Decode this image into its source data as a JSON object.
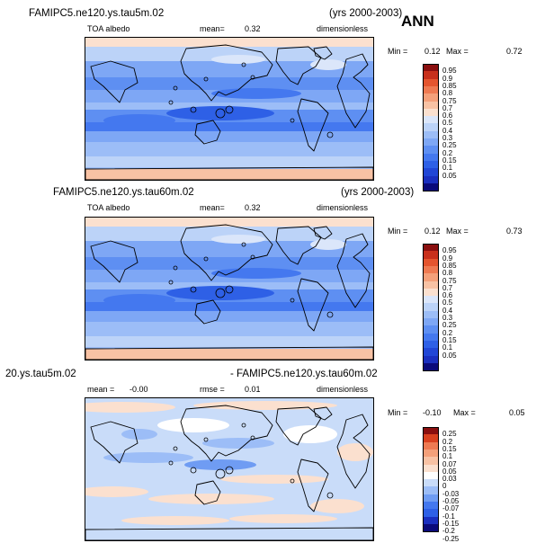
{
  "annual_label": "ANN",
  "colors": {
    "abs_scale": [
      "#0a0a7a",
      "#1a2fbf",
      "#2146d6",
      "#2e60e6",
      "#4478ef",
      "#5e8ff2",
      "#7ea7f5",
      "#9cbdf7",
      "#bcd3f8",
      "#dbe6fa",
      "#fbe0cf",
      "#f8c2a4",
      "#f4a07a",
      "#ee7a52",
      "#e4552f",
      "#c8301c",
      "#8a0f0f"
    ],
    "diff_scale": [
      "#0a0a7a",
      "#1a2fbf",
      "#2e60e6",
      "#4478ef",
      "#6f9cf3",
      "#9cbdf7",
      "#c9dcf9",
      "#ffffff",
      "#fbe0cf",
      "#f8c2a4",
      "#f4a07a",
      "#ee7a52",
      "#d9411f",
      "#8a0f0f"
    ],
    "land_outline": "#000000"
  },
  "panels": [
    {
      "title": "FAMIPC5.ne120.ys.tau5m.02",
      "years": "(yrs 2000-2003)",
      "variable": "TOA albedo",
      "mean_label": "mean=",
      "mean_value": "0.32",
      "units": "dimensionless",
      "min_label": "Min =",
      "min_value": "0.12",
      "max_label": "Max =",
      "max_value": "0.72"
    },
    {
      "title": "FAMIPC5.ne120.ys.tau60m.02",
      "years": "(yrs 2000-2003)",
      "variable": "TOA albedo",
      "mean_label": "mean=",
      "mean_value": "0.32",
      "units": "dimensionless",
      "min_label": "Min =",
      "min_value": "0.12",
      "max_label": "Max =",
      "max_value": "0.73"
    },
    {
      "title_left": "20.ys.tau5m.02",
      "title_right": "- FAMIPC5.ne120.ys.tau60m.02",
      "mean_label": "mean =",
      "mean_value": "-0.00",
      "rmse_label": "rmse =",
      "rmse_value": "0.01",
      "units": "dimensionless",
      "min_label": "Min =",
      "min_value": "-0.10",
      "max_label": "Max =",
      "max_value": "0.05"
    }
  ],
  "chart_data": [
    {
      "type": "heatmap",
      "title": "FAMIPC5.ne120.ys.tau5m.02",
      "variable": "TOA albedo",
      "units": "dimensionless",
      "period": "(yrs 2000-2003)",
      "mean": 0.32,
      "min": 0.12,
      "max": 0.72,
      "colorbar_levels": [
        "0.95",
        "0.9",
        "0.85",
        "0.8",
        "0.75",
        "0.7",
        "0.6",
        "0.5",
        "0.4",
        "0.3",
        "0.25",
        "0.2",
        "0.15",
        "0.1",
        "0.05"
      ],
      "projection": "cylindrical equidistant, Pacific-centered"
    },
    {
      "type": "heatmap",
      "title": "FAMIPC5.ne120.ys.tau60m.02",
      "variable": "TOA albedo",
      "units": "dimensionless",
      "period": "(yrs 2000-2003)",
      "mean": 0.32,
      "min": 0.12,
      "max": 0.73,
      "colorbar_levels": [
        "0.95",
        "0.9",
        "0.85",
        "0.8",
        "0.75",
        "0.7",
        "0.6",
        "0.5",
        "0.4",
        "0.3",
        "0.25",
        "0.2",
        "0.15",
        "0.1",
        "0.05"
      ],
      "projection": "cylindrical equidistant, Pacific-centered"
    },
    {
      "type": "heatmap",
      "title": "20.ys.tau5m.02 - FAMIPC5.ne120.ys.tau60m.02",
      "units": "dimensionless",
      "mean": -0.0,
      "rmse": 0.01,
      "min": -0.1,
      "max": 0.05,
      "colorbar_levels": [
        "0.25",
        "0.2",
        "0.15",
        "0.1",
        "0.07",
        "0.05",
        "0.03",
        "0",
        "-0.03",
        "-0.05",
        "-0.07",
        "-0.1",
        "-0.15",
        "-0.2",
        "-0.25"
      ],
      "projection": "cylindrical equidistant, Pacific-centered"
    }
  ]
}
